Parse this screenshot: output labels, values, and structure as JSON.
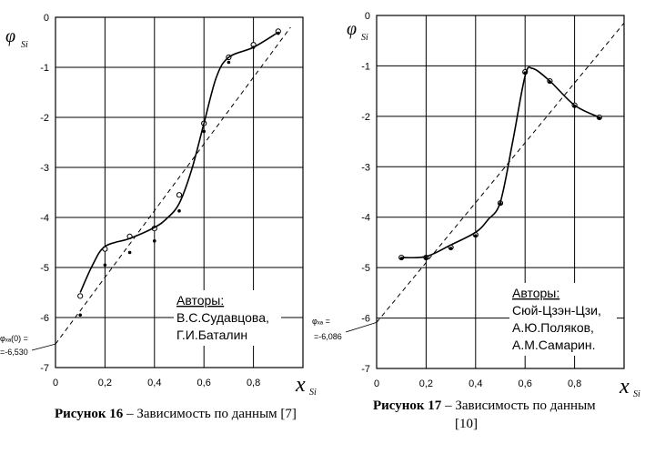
{
  "chart_data": [
    {
      "type": "scatter",
      "xlabel": "x",
      "xlabel_sub": "Si",
      "ylabel": "φ",
      "ylabel_sub": "Si",
      "xlim": [
        0,
        1.0
      ],
      "ylim": [
        -7,
        0
      ],
      "xticks": [
        "0",
        "0,2",
        "0,4",
        "0,6",
        "0,8"
      ],
      "yticks": [
        "0",
        "-1",
        "-2",
        "-3",
        "-4",
        "-5",
        "-6",
        "-7"
      ],
      "grid": true,
      "series": [
        {
          "values_x": [
            0.1,
            0.2,
            0.3,
            0.4,
            0.5,
            0.6,
            0.7,
            0.8,
            0.9
          ],
          "values_y": [
            -5.57,
            -4.63,
            -4.38,
            -4.22,
            -3.55,
            -2.12,
            -0.8,
            -0.55,
            -0.28
          ],
          "marker": "open-circle"
        },
        {
          "values_x": [
            0.1,
            0.2,
            0.3,
            0.4,
            0.5,
            0.6,
            0.7,
            0.8,
            0.9
          ],
          "values_y": [
            -5.95,
            -4.95,
            -4.7,
            -4.47,
            -3.87,
            -2.28,
            -0.9,
            -0.6,
            -0.32
          ],
          "marker": "filled-dot"
        },
        {
          "values_x": [
            0.1,
            0.15,
            0.2,
            0.3,
            0.4,
            0.45,
            0.5,
            0.55,
            0.6,
            0.65,
            0.7,
            0.8,
            0.9
          ],
          "values_y": [
            -5.5,
            -4.95,
            -4.58,
            -4.42,
            -4.2,
            -4.02,
            -3.72,
            -3.05,
            -2.12,
            -1.2,
            -0.8,
            -0.6,
            -0.3
          ],
          "style": "smooth-line"
        },
        {
          "values_x": [
            0,
            0.95
          ],
          "values_y": [
            -6.53,
            -0.2
          ],
          "style": "dashed-line"
        }
      ],
      "annotations": {
        "intercept_line1": "φₓₐ(0) =",
        "intercept_line2": "=-6,530",
        "authors_heading": "Авторы:",
        "authors": [
          "В.С.Судавцова,",
          "Г.И.Баталин"
        ]
      },
      "caption_bold": "Рисунок 16",
      "caption_rest": " – Зависимость  по данным [7]"
    },
    {
      "type": "scatter",
      "xlabel": "x",
      "xlabel_sub": "Si",
      "ylabel": "φ",
      "ylabel_sub": "Si",
      "xlim": [
        0,
        1.0
      ],
      "ylim": [
        -7,
        0
      ],
      "xticks": [
        "0",
        "0,2",
        "0,4",
        "0,6",
        "0,8"
      ],
      "yticks": [
        "0",
        "-1",
        "-2",
        "-3",
        "-4",
        "-5",
        "-6",
        "-7"
      ],
      "grid": true,
      "series": [
        {
          "values_x": [
            0.1,
            0.2,
            0.3,
            0.4,
            0.5,
            0.6,
            0.7,
            0.8,
            0.9
          ],
          "values_y": [
            -4.8,
            -4.8,
            -4.6,
            -4.35,
            -3.72,
            -1.12,
            -1.3,
            -1.78,
            -2.02
          ],
          "marker": "open-circle"
        },
        {
          "values_x": [
            0.1,
            0.2,
            0.3,
            0.4,
            0.5,
            0.6,
            0.7,
            0.8,
            0.9
          ],
          "values_y": [
            -4.82,
            -4.82,
            -4.62,
            -4.37,
            -3.73,
            -1.14,
            -1.32,
            -1.8,
            -2.03
          ],
          "marker": "filled-dot"
        },
        {
          "values_x": [
            0.1,
            0.2,
            0.3,
            0.4,
            0.45,
            0.5,
            0.55,
            0.6,
            0.63,
            0.7,
            0.8,
            0.9
          ],
          "values_y": [
            -4.8,
            -4.78,
            -4.55,
            -4.3,
            -4.05,
            -3.7,
            -2.5,
            -1.2,
            -1.05,
            -1.3,
            -1.78,
            -2.02
          ],
          "style": "smooth-line"
        },
        {
          "values_x": [
            0,
            1.0
          ],
          "values_y": [
            -6.086,
            -0.15
          ],
          "style": "dashed-line"
        }
      ],
      "annotations": {
        "intercept_line1": "φₓₐ =",
        "intercept_line2": "=-6,086",
        "authors_heading": "Авторы:",
        "authors": [
          "Сюй-Цзэн-Цзи,",
          "А.Ю.Поляков,",
          "А.М.Самарин."
        ]
      },
      "caption_bold": "Рисунок 17",
      "caption_rest": " – Зависимость  по данным",
      "caption_line2": "[10]"
    }
  ]
}
